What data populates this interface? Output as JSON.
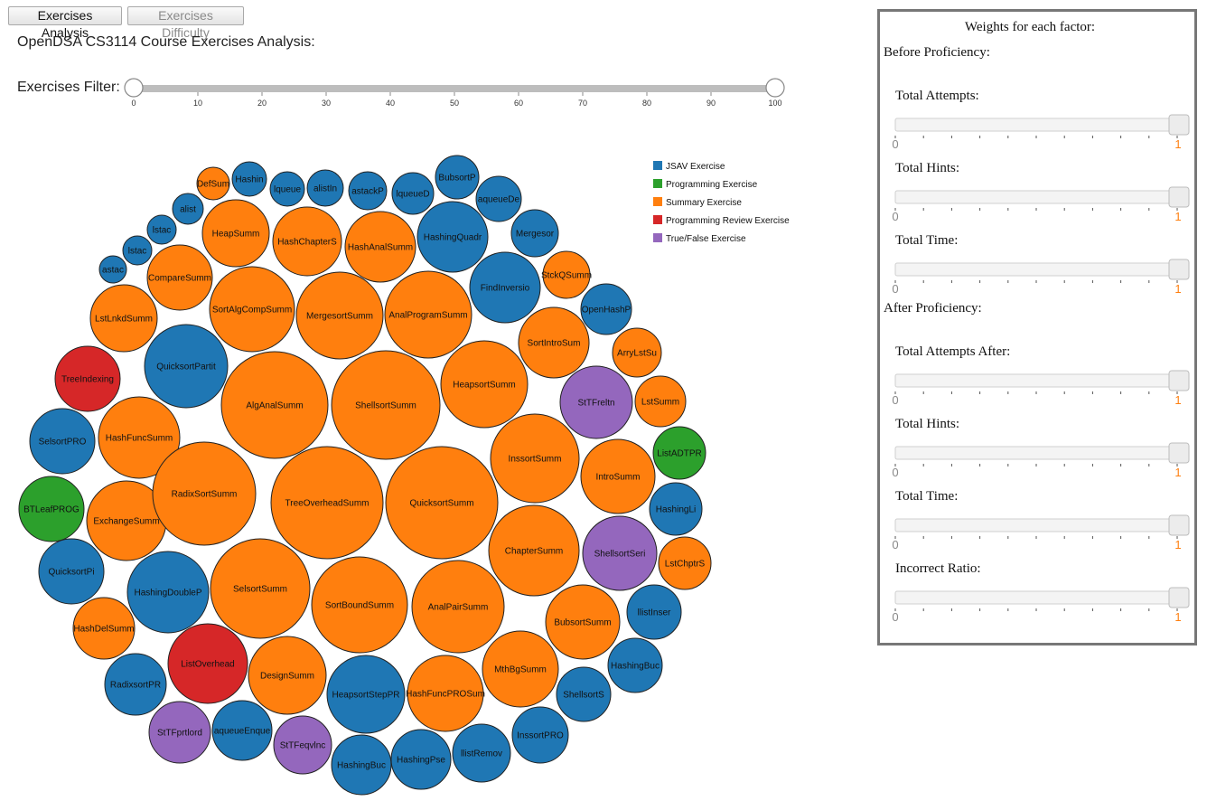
{
  "buttons": {
    "analysis": "Exercises Analysis",
    "difficulty": "Exercises Difficulty"
  },
  "title": "OpenDSA CS3114 Course Exercises Analysis:",
  "filter": {
    "label": "Exercises Filter:",
    "ticks": [
      "0",
      "10",
      "20",
      "30",
      "40",
      "50",
      "60",
      "70",
      "80",
      "90",
      "100"
    ],
    "min": 0,
    "max": 100,
    "low": 0,
    "high": 100
  },
  "legend": [
    {
      "label": "JSAV Exercise",
      "color": "#1f77b4"
    },
    {
      "label": "Programming Exercise",
      "color": "#2ca02c"
    },
    {
      "label": "Summary Exercise",
      "color": "#ff7f0e"
    },
    {
      "label": "Programming Review Exercise",
      "color": "#d62728"
    },
    {
      "label": "True/False Exercise",
      "color": "#9467bd"
    }
  ],
  "bubbles": [
    {
      "label": "astac",
      "cat": 0
    },
    {
      "label": "lstac",
      "cat": 0
    },
    {
      "label": "lstac",
      "cat": 0
    },
    {
      "label": "alist",
      "cat": 0
    },
    {
      "label": "DefSum",
      "cat": 2
    },
    {
      "label": "Hashin",
      "cat": 0
    },
    {
      "label": "lqueue",
      "cat": 0
    },
    {
      "label": "alistIn",
      "cat": 0
    },
    {
      "label": "astackP",
      "cat": 0
    },
    {
      "label": "lqueueD",
      "cat": 0
    },
    {
      "label": "BubsortP",
      "cat": 0
    },
    {
      "label": "aqueueDe",
      "cat": 0
    },
    {
      "label": "Mergesor",
      "cat": 0
    },
    {
      "label": "StckQSumm",
      "cat": 2
    },
    {
      "label": "OpenHashP",
      "cat": 0
    },
    {
      "label": "ArryLstSu",
      "cat": 2
    },
    {
      "label": "LstSumm",
      "cat": 2
    },
    {
      "label": "ListADTPR",
      "cat": 1
    },
    {
      "label": "HashingLi",
      "cat": 0
    },
    {
      "label": "LstChptrS",
      "cat": 2
    },
    {
      "label": "llistInser",
      "cat": 0
    },
    {
      "label": "HashingBuc",
      "cat": 0
    },
    {
      "label": "ShellsortS",
      "cat": 0
    },
    {
      "label": "InssortPRO",
      "cat": 0
    },
    {
      "label": "llistRemov",
      "cat": 0
    },
    {
      "label": "HashingPse",
      "cat": 0
    },
    {
      "label": "HashingBuc",
      "cat": 0
    },
    {
      "label": "StTFeqvlnc",
      "cat": 4
    },
    {
      "label": "aqueueEnque",
      "cat": 0
    },
    {
      "label": "StTFprtlord",
      "cat": 4
    },
    {
      "label": "RadixsortPR",
      "cat": 0
    },
    {
      "label": "HashDelSumm",
      "cat": 2
    },
    {
      "label": "QuicksortPi",
      "cat": 0
    },
    {
      "label": "BTLeafPROG",
      "cat": 1
    },
    {
      "label": "SelsortPRO",
      "cat": 0
    },
    {
      "label": "TreeIndexing",
      "cat": 3
    },
    {
      "label": "LstLnkdSumm",
      "cat": 2
    },
    {
      "label": "CompareSumm",
      "cat": 2
    },
    {
      "label": "HeapSumm",
      "cat": 2
    },
    {
      "label": "HashChapterS",
      "cat": 2
    },
    {
      "label": "HashAnalSumm",
      "cat": 2
    },
    {
      "label": "HashingQuadr",
      "cat": 0
    },
    {
      "label": "FindInversio",
      "cat": 0
    },
    {
      "label": "SortIntroSum",
      "cat": 2
    },
    {
      "label": "StTFreltn",
      "cat": 4
    },
    {
      "label": "IntroSumm",
      "cat": 2
    },
    {
      "label": "ShellsortSeri",
      "cat": 4
    },
    {
      "label": "BubsortSumm",
      "cat": 2
    },
    {
      "label": "MthBgSumm",
      "cat": 2
    },
    {
      "label": "HashFuncPROSum",
      "cat": 2
    },
    {
      "label": "HeapsortStepPR",
      "cat": 0
    },
    {
      "label": "DesignSumm",
      "cat": 2
    },
    {
      "label": "ListOverhead",
      "cat": 3
    },
    {
      "label": "HashingDoubleP",
      "cat": 0
    },
    {
      "label": "ExchangeSumm",
      "cat": 2
    },
    {
      "label": "HashFuncSumm",
      "cat": 2
    },
    {
      "label": "QuicksortPartit",
      "cat": 0
    },
    {
      "label": "SortAlgCompSumm",
      "cat": 2
    },
    {
      "label": "MergesortSumm",
      "cat": 2
    },
    {
      "label": "AnalProgramSumm",
      "cat": 2
    },
    {
      "label": "HeapsortSumm",
      "cat": 2
    },
    {
      "label": "InssortSumm",
      "cat": 2
    },
    {
      "label": "ChapterSumm",
      "cat": 2
    },
    {
      "label": "AnalPairSumm",
      "cat": 2
    },
    {
      "label": "SortBoundSumm",
      "cat": 2
    },
    {
      "label": "SelsortSumm",
      "cat": 2
    },
    {
      "label": "RadixSortSumm",
      "cat": 2
    },
    {
      "label": "AlgAnalSumm",
      "cat": 2
    },
    {
      "label": "ShellsortSumm",
      "cat": 2
    },
    {
      "label": "TreeOverheadSumm",
      "cat": 2
    },
    {
      "label": "QuicksortSumm",
      "cat": 2
    }
  ],
  "weights": {
    "title": "Weights for each factor:",
    "before": {
      "heading": "Before Proficiency:",
      "sliders": [
        {
          "label": "Total Attempts:",
          "min": "0",
          "max": "1"
        },
        {
          "label": "Total Hints:",
          "min": "0",
          "max": "1"
        },
        {
          "label": "Total Time:",
          "min": "0",
          "max": "1"
        }
      ]
    },
    "after": {
      "heading": "After Proficiency:",
      "sliders": [
        {
          "label": "Total Attempts After:",
          "min": "0",
          "max": "1"
        },
        {
          "label": "Total Hints:",
          "min": "0",
          "max": "1"
        },
        {
          "label": "Total Time:",
          "min": "0",
          "max": "1"
        },
        {
          "label": "Incorrect Ratio:",
          "min": "0",
          "max": "1"
        }
      ]
    }
  }
}
